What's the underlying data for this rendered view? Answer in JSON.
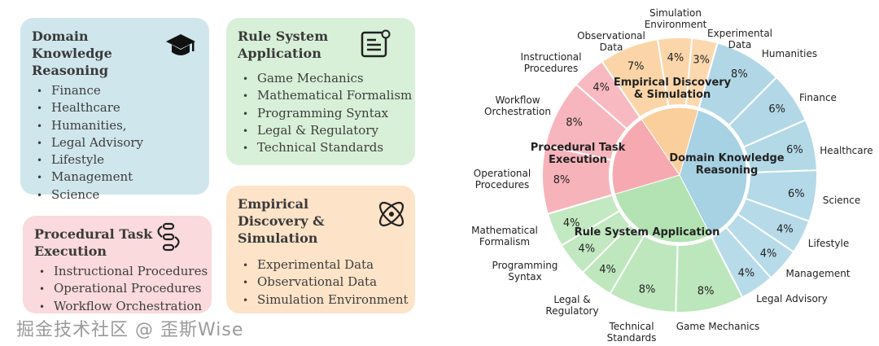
{
  "boxes": {
    "domain": {
      "title": "Domain Knowledge Reasoning",
      "icon": "graduation-cap-icon",
      "color": "#cfe6ec",
      "items": [
        "Finance",
        "Healthcare",
        "Humanities,",
        "Legal Advisory",
        "Lifestyle",
        "Management",
        "Science"
      ]
    },
    "rule": {
      "title": "Rule System Application",
      "icon": "document-gear-icon",
      "color": "#d8f0d8",
      "items": [
        "Game Mechanics",
        "Mathematical Formalism",
        "Programming Syntax",
        "Legal & Regulatory",
        "Technical Standards"
      ]
    },
    "procedural": {
      "title": "Procedural Task Execution",
      "icon": "workflow-icon",
      "color": "#fadadc",
      "items": [
        "Instructional Procedures",
        "Operational Procedures",
        "Workflow Orchestration"
      ]
    },
    "empirical": {
      "title": "Empirical Discovery & Simulation",
      "icon": "atom-icon",
      "color": "#fde3c8",
      "items": [
        "Experimental Data",
        "Observational Data",
        "Simulation Environment"
      ]
    }
  },
  "chart_data": {
    "type": "sunburst",
    "unit": "%",
    "groups": [
      {
        "name": "Domain Knowledge Reasoning",
        "color": "#a6d2e3",
        "children": [
          {
            "name": "Humanities",
            "value": 8
          },
          {
            "name": "Finance",
            "value": 6
          },
          {
            "name": "Healthcare",
            "value": 6
          },
          {
            "name": "Science",
            "value": 6
          },
          {
            "name": "Lifestyle",
            "value": 4
          },
          {
            "name": "Management",
            "value": 4
          },
          {
            "name": "Legal Advisory",
            "value": 4
          }
        ]
      },
      {
        "name": "Rule System Application",
        "color": "#b3e3b2",
        "children": [
          {
            "name": "Game Mechanics",
            "value": 8
          },
          {
            "name": "Technical Standards",
            "value": 8
          },
          {
            "name": "Legal & Regulatory",
            "value": 4
          },
          {
            "name": "Programming Syntax",
            "value": 4
          },
          {
            "name": "Mathematical Formalism",
            "value": 4
          }
        ]
      },
      {
        "name": "Procedural Task Execution",
        "color": "#f6a9b1",
        "children": [
          {
            "name": "Operational Procedures",
            "value": 8
          },
          {
            "name": "Workflow Orchestration",
            "value": 8
          },
          {
            "name": "Instructional Procedures",
            "value": 4
          }
        ]
      },
      {
        "name": "Empirical Discovery & Simulation",
        "color": "#fbcf9c",
        "children": [
          {
            "name": "Observational Data",
            "value": 7
          },
          {
            "name": "Simulation Environment",
            "value": 4
          },
          {
            "name": "Experimental Data",
            "value": 3
          }
        ]
      }
    ]
  },
  "watermark": "掘金技术社区 @ 歪斯Wise"
}
